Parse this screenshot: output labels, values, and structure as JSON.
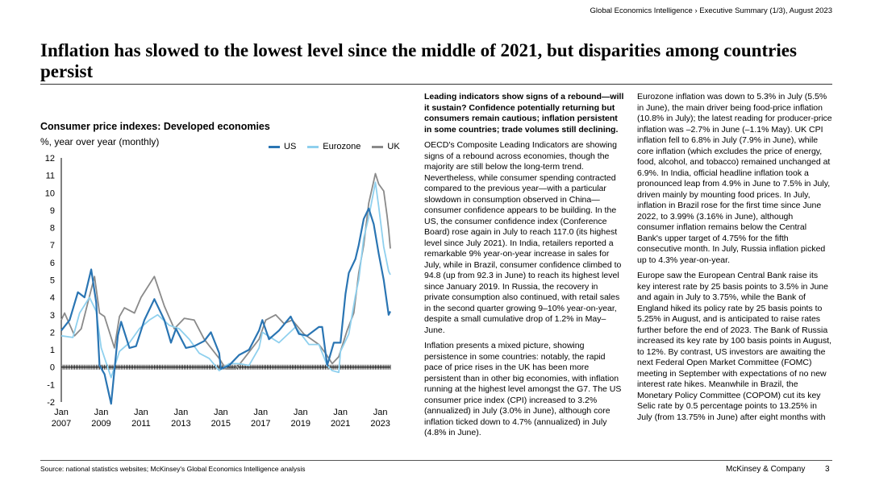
{
  "header": {
    "breadcrumb": "Global Economics Intelligence › Executive Summary (1/3), August 2023",
    "title": "Inflation has slowed to the lowest level since the middle of 2021, but disparities among countries persist"
  },
  "chart_data": {
    "type": "line",
    "title": "Consumer price indexes: Developed economies",
    "subtitle": "%, year over year (monthly)",
    "ylim": [
      -2,
      12
    ],
    "yticks": [
      "12",
      "11",
      "10",
      "9",
      "8",
      "7",
      "6",
      "5",
      "4",
      "3",
      "2",
      "1",
      "0",
      "-1",
      "-2"
    ],
    "xticks": [
      {
        "month": "Jan",
        "year": "2007"
      },
      {
        "month": "Jan",
        "year": "2009"
      },
      {
        "month": "Jan",
        "year": "2011"
      },
      {
        "month": "Jan",
        "year": "2013"
      },
      {
        "month": "Jan",
        "year": "2015"
      },
      {
        "month": "Jan",
        "year": "2017"
      },
      {
        "month": "Jan",
        "year": "2019"
      },
      {
        "month": "Jan",
        "year": "2021"
      },
      {
        "month": "Jan",
        "year": "2023"
      }
    ],
    "xrange": [
      "2007-01",
      "2023-07"
    ],
    "grid": false,
    "legend_position": "top-right",
    "series": [
      {
        "name": "US",
        "color": "#2a75b3",
        "points": [
          [
            "2007-01",
            2.1
          ],
          [
            "2007-06",
            2.7
          ],
          [
            "2007-11",
            4.3
          ],
          [
            "2008-03",
            4.0
          ],
          [
            "2008-07",
            5.6
          ],
          [
            "2008-10",
            3.7
          ],
          [
            "2008-12",
            0.1
          ],
          [
            "2009-03",
            -0.4
          ],
          [
            "2009-07",
            -2.1
          ],
          [
            "2009-11",
            1.8
          ],
          [
            "2010-01",
            2.6
          ],
          [
            "2010-06",
            1.1
          ],
          [
            "2010-10",
            1.2
          ],
          [
            "2011-03",
            2.7
          ],
          [
            "2011-09",
            3.9
          ],
          [
            "2012-03",
            2.7
          ],
          [
            "2012-07",
            1.4
          ],
          [
            "2012-10",
            2.2
          ],
          [
            "2013-04",
            1.1
          ],
          [
            "2013-09",
            1.2
          ],
          [
            "2014-03",
            1.5
          ],
          [
            "2014-07",
            2.0
          ],
          [
            "2014-12",
            0.8
          ],
          [
            "2015-01",
            -0.1
          ],
          [
            "2015-06",
            0.1
          ],
          [
            "2015-12",
            0.7
          ],
          [
            "2016-06",
            1.0
          ],
          [
            "2016-12",
            2.1
          ],
          [
            "2017-02",
            2.7
          ],
          [
            "2017-06",
            1.6
          ],
          [
            "2017-12",
            2.1
          ],
          [
            "2018-07",
            2.9
          ],
          [
            "2018-12",
            1.9
          ],
          [
            "2019-05",
            1.8
          ],
          [
            "2019-12",
            2.3
          ],
          [
            "2020-02",
            2.3
          ],
          [
            "2020-05",
            0.1
          ],
          [
            "2020-09",
            1.4
          ],
          [
            "2021-01",
            1.4
          ],
          [
            "2021-04",
            4.2
          ],
          [
            "2021-06",
            5.4
          ],
          [
            "2021-10",
            6.2
          ],
          [
            "2021-12",
            7.0
          ],
          [
            "2022-03",
            8.5
          ],
          [
            "2022-06",
            9.1
          ],
          [
            "2022-09",
            8.2
          ],
          [
            "2022-12",
            6.5
          ],
          [
            "2023-03",
            5.0
          ],
          [
            "2023-06",
            3.0
          ],
          [
            "2023-07",
            3.2
          ]
        ]
      },
      {
        "name": "Eurozone",
        "color": "#8fd0ee",
        "points": [
          [
            "2007-01",
            1.8
          ],
          [
            "2007-08",
            1.7
          ],
          [
            "2007-12",
            3.1
          ],
          [
            "2008-06",
            4.0
          ],
          [
            "2008-10",
            3.2
          ],
          [
            "2009-01",
            1.1
          ],
          [
            "2009-07",
            -0.6
          ],
          [
            "2009-12",
            0.9
          ],
          [
            "2010-06",
            1.4
          ],
          [
            "2010-12",
            2.2
          ],
          [
            "2011-06",
            2.7
          ],
          [
            "2011-11",
            3.0
          ],
          [
            "2012-06",
            2.4
          ],
          [
            "2012-12",
            2.2
          ],
          [
            "2013-06",
            1.6
          ],
          [
            "2013-12",
            0.8
          ],
          [
            "2014-06",
            0.5
          ],
          [
            "2014-12",
            -0.2
          ],
          [
            "2015-06",
            0.2
          ],
          [
            "2015-12",
            0.2
          ],
          [
            "2016-06",
            0.1
          ],
          [
            "2016-12",
            1.1
          ],
          [
            "2017-02",
            2.0
          ],
          [
            "2017-12",
            1.4
          ],
          [
            "2018-10",
            2.3
          ],
          [
            "2019-06",
            1.3
          ],
          [
            "2019-12",
            1.3
          ],
          [
            "2020-05",
            0.1
          ],
          [
            "2020-08",
            -0.2
          ],
          [
            "2020-12",
            -0.3
          ],
          [
            "2021-01",
            0.9
          ],
          [
            "2021-06",
            1.9
          ],
          [
            "2021-10",
            4.1
          ],
          [
            "2021-12",
            5.0
          ],
          [
            "2022-03",
            7.4
          ],
          [
            "2022-06",
            8.6
          ],
          [
            "2022-10",
            10.6
          ],
          [
            "2022-12",
            9.2
          ],
          [
            "2023-03",
            6.9
          ],
          [
            "2023-06",
            5.5
          ],
          [
            "2023-07",
            5.3
          ]
        ]
      },
      {
        "name": "UK",
        "color": "#8a8a8a",
        "points": [
          [
            "2007-01",
            2.7
          ],
          [
            "2007-03",
            3.1
          ],
          [
            "2007-09",
            1.8
          ],
          [
            "2008-01",
            2.2
          ],
          [
            "2008-09",
            5.2
          ],
          [
            "2008-12",
            3.1
          ],
          [
            "2009-03",
            2.9
          ],
          [
            "2009-09",
            1.1
          ],
          [
            "2009-12",
            2.9
          ],
          [
            "2010-03",
            3.4
          ],
          [
            "2010-09",
            3.1
          ],
          [
            "2011-01",
            4.0
          ],
          [
            "2011-09",
            5.2
          ],
          [
            "2012-03",
            3.5
          ],
          [
            "2012-09",
            2.2
          ],
          [
            "2013-03",
            2.8
          ],
          [
            "2013-09",
            2.7
          ],
          [
            "2014-03",
            1.6
          ],
          [
            "2014-12",
            0.5
          ],
          [
            "2015-04",
            -0.1
          ],
          [
            "2015-10",
            -0.1
          ],
          [
            "2016-03",
            0.5
          ],
          [
            "2016-12",
            1.6
          ],
          [
            "2017-04",
            2.7
          ],
          [
            "2017-10",
            3.0
          ],
          [
            "2018-03",
            2.5
          ],
          [
            "2018-08",
            2.7
          ],
          [
            "2019-03",
            1.9
          ],
          [
            "2019-12",
            1.3
          ],
          [
            "2020-04",
            0.8
          ],
          [
            "2020-08",
            0.2
          ],
          [
            "2020-12",
            0.6
          ],
          [
            "2021-05",
            2.1
          ],
          [
            "2021-09",
            3.1
          ],
          [
            "2021-12",
            5.4
          ],
          [
            "2022-03",
            7.0
          ],
          [
            "2022-06",
            9.4
          ],
          [
            "2022-10",
            11.1
          ],
          [
            "2022-12",
            10.5
          ],
          [
            "2023-03",
            10.1
          ],
          [
            "2023-05",
            8.7
          ],
          [
            "2023-06",
            7.9
          ],
          [
            "2023-07",
            6.8
          ]
        ]
      }
    ]
  },
  "column1": {
    "lead": "Leading indicators show signs of a rebound—will it sustain? Confidence potentially returning but consumers remain cautious; inflation persistent in some countries; trade volumes still declining.",
    "p1": "OECD's Composite Leading Indicators are showing signs of a rebound across economies, though the majority are still below the long-term trend. Nevertheless, while consumer spending contracted compared to the previous year—with a particular slowdown in consumption observed in China—consumer confidence appears to be building. In the US, the consumer confidence index (Conference Board) rose again in July to reach 117.0 (its highest level since July 2021). In India, retailers reported a remarkable 9% year-on-year increase in sales for July, while in Brazil, consumer confidence climbed to 94.8 (up from 92.3 in June) to reach its highest level since January 2019. In Russia, the recovery in private consumption also continued, with retail sales in the second quarter growing 9–10% year-on-year, despite a small cumulative drop of 1.2% in May–June.",
    "p2": "Inflation presents a mixed picture, showing persistence in some countries: notably, the rapid pace of price rises in the UK has been more persistent than in other big economies, with inflation running at the highest level amongst the G7. The US consumer price index (CPI) increased to 3.2% (annualized) in July (3.0% in June), although core inflation ticked down to 4.7% (annualized) in July (4.8% in June)."
  },
  "column2": {
    "p1": "Eurozone inflation was down to 5.3% in July (5.5% in June), the main driver being food-price inflation (10.8% in July); the latest reading for producer-price inflation was –2.7% in June (–1.1% May). UK CPI inflation fell to 6.8% in July (7.9% in June), while core inflation (which excludes the price of energy, food, alcohol, and tobacco) remained unchanged at 6.9%. In India, official headline inflation took a pronounced leap from 4.9% in June to 7.5% in July, driven mainly by mounting food prices. In July, inflation in Brazil rose for the first time since June 2022, to 3.99% (3.16% in June), although consumer inflation remains below the Central Bank's upper target of 4.75% for the fifth consecutive month. In July, Russia inflation picked up to 4.3% year-on-year.",
    "p2": "Europe saw the European Central Bank raise its key interest rate by 25 basis points to 3.5% in June and again in July to 3.75%, while the Bank of England hiked its policy rate by 25 basis points to 5.25% in August, and is anticipated to raise rates further before the end of 2023. The Bank of Russia increased its key rate by 100 basis points in August, to 12%. By contrast, US investors are awaiting the next Federal Open Market Committee (FOMC) meeting in September with expectations of no new interest rate hikes. Meanwhile in Brazil, the Monetary Policy Committee (COPOM) cut its key Selic rate by 0.5 percentage points to 13.25% in July (from 13.75% in June) after eight months with"
  },
  "footer": {
    "source": "Source: national statistics websites; McKinsey's Global Economics Intelligence analysis",
    "brand": "McKinsey & Company",
    "page": "3"
  }
}
